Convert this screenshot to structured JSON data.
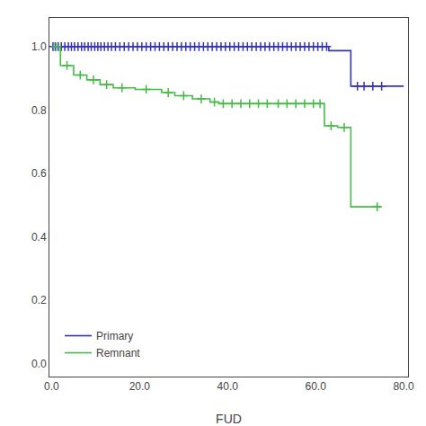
{
  "chart_data": {
    "type": "line",
    "xlabel": "FUD",
    "xlim": [
      -0.5,
      81
    ],
    "ylim": [
      -0.04,
      1.09
    ],
    "xticks": [
      {
        "value": 0.0,
        "label": "0.0"
      },
      {
        "value": 20.0,
        "label": "20.0"
      },
      {
        "value": 40.0,
        "label": "40.0"
      },
      {
        "value": 60.0,
        "label": "60.0"
      },
      {
        "value": 80.0,
        "label": "80.0"
      }
    ],
    "yticks": [
      {
        "value": 0.0,
        "label": "0.0"
      },
      0.2,
      0.4,
      0.6,
      0.8,
      {
        "value": 1.0,
        "label": "1.0"
      }
    ],
    "grid": false,
    "legend": "lower left",
    "series": [
      {
        "name": "Primary",
        "color": "#3333bb",
        "type": "line",
        "line_style": "step",
        "x": [
          0,
          63,
          63,
          68,
          68,
          80
        ],
        "values": [
          1.0,
          1.0,
          0.987,
          0.987,
          0.875,
          0.875
        ]
      },
      {
        "color": "#3333bb",
        "type": "scatter",
        "marker": "cross",
        "x": [
          0.3,
          0.8,
          1.5,
          2.2,
          3.0,
          3.8,
          4.5,
          5.2,
          6.0,
          6.8,
          7.5,
          8.3,
          9.0,
          9.8,
          10.5,
          11.2,
          12.0,
          12.8,
          13.6,
          14.5,
          15.5,
          16.5,
          17.5,
          18.5,
          19.5,
          20.5,
          21.5,
          22.5,
          23.5,
          24.5,
          25.5,
          26.5,
          27.5,
          28.5,
          29.5,
          30.5,
          31.5,
          32.5,
          33.5,
          34.5,
          35.5,
          36.5,
          37.5,
          38.5,
          39.5,
          40.5,
          41.5,
          42.5,
          43.5,
          44.5,
          45.5,
          46.5,
          47.5,
          48.5,
          49.5,
          50.5,
          51.5,
          52.5,
          53.5,
          54.5,
          55.5,
          56.5,
          57.5,
          58.5,
          59.5,
          60.5,
          61.5,
          62.5,
          69.5,
          71.0,
          73.0,
          75.0
        ],
        "values": [
          1.0,
          1.0,
          1.0,
          1.0,
          1.0,
          1.0,
          1.0,
          1.0,
          1.0,
          1.0,
          1.0,
          1.0,
          1.0,
          1.0,
          1.0,
          1.0,
          1.0,
          1.0,
          1.0,
          1.0,
          1.0,
          1.0,
          1.0,
          1.0,
          1.0,
          1.0,
          1.0,
          1.0,
          1.0,
          1.0,
          1.0,
          1.0,
          1.0,
          1.0,
          1.0,
          1.0,
          1.0,
          1.0,
          1.0,
          1.0,
          1.0,
          1.0,
          1.0,
          1.0,
          1.0,
          1.0,
          1.0,
          1.0,
          1.0,
          1.0,
          1.0,
          1.0,
          1.0,
          1.0,
          1.0,
          1.0,
          1.0,
          1.0,
          1.0,
          1.0,
          1.0,
          1.0,
          1.0,
          1.0,
          1.0,
          1.0,
          1.0,
          1.0,
          0.875,
          0.875,
          0.875,
          0.875
        ]
      },
      {
        "name": "Remnant",
        "color": "#44bb44",
        "type": "line",
        "line_style": "step",
        "x": [
          0,
          2,
          2,
          5,
          5,
          8,
          8,
          11,
          11,
          14,
          14,
          19,
          19,
          25,
          25,
          28,
          28,
          32,
          32,
          36,
          36,
          38,
          38,
          40,
          40,
          62,
          62,
          65,
          65,
          68,
          68,
          75
        ],
        "values": [
          1.0,
          1.0,
          0.94,
          0.94,
          0.91,
          0.91,
          0.895,
          0.895,
          0.88,
          0.88,
          0.87,
          0.87,
          0.865,
          0.865,
          0.855,
          0.855,
          0.845,
          0.845,
          0.835,
          0.835,
          0.825,
          0.825,
          0.82,
          0.82,
          0.82,
          0.82,
          0.75,
          0.75,
          0.745,
          0.745,
          0.495,
          0.495
        ]
      },
      {
        "color": "#44bb44",
        "type": "scatter",
        "marker": "cross",
        "x": [
          1.0,
          3.5,
          6.5,
          9.5,
          12.5,
          16.0,
          21.5,
          26.5,
          30.0,
          34.0,
          37.0,
          39.0,
          41.0,
          43.0,
          45.0,
          47.0,
          49.0,
          51.5,
          53.5,
          55.5,
          57.5,
          59.5,
          61.0,
          63.5,
          66.5,
          74.0
        ],
        "values": [
          1.0,
          0.94,
          0.91,
          0.895,
          0.88,
          0.87,
          0.865,
          0.855,
          0.845,
          0.835,
          0.825,
          0.82,
          0.82,
          0.82,
          0.82,
          0.82,
          0.82,
          0.82,
          0.82,
          0.82,
          0.82,
          0.82,
          0.82,
          0.75,
          0.745,
          0.495
        ]
      }
    ]
  }
}
